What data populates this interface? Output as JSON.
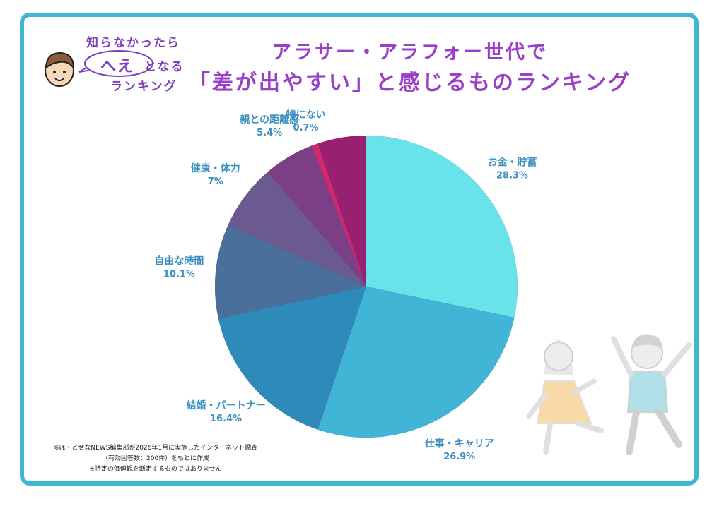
{
  "logo": {
    "line1": "知らなかったら",
    "line2_highlight": "へえ",
    "line2_rest": "となる",
    "line3": "ランキング"
  },
  "title": {
    "line1": "アラサー・アラフォー世代で",
    "line2": "「差が出やすい」と感じるものランキング"
  },
  "footnote": {
    "line1": "※ほ・とせなNEWS編集部が2026年1月に実施したインターネット調査",
    "line2": "（有効回答数：200件）をもとに作成",
    "line3": "※特定の価値観を断定するものではありません"
  },
  "chart_data": {
    "type": "pie",
    "title": "「差が出やすい」と感じるものランキング",
    "start_angle_deg": 0,
    "direction": "clockwise",
    "slices": [
      {
        "label": "お金・貯蓄",
        "value": 28.3,
        "value_label": "28.3%",
        "color": "#68e3e9"
      },
      {
        "label": "仕事・キャリア",
        "value": 26.9,
        "value_label": "26.9%",
        "color": "#40b5d6"
      },
      {
        "label": "結婚・パートナー",
        "value": 16.4,
        "value_label": "16.4%",
        "color": "#2e8ab8"
      },
      {
        "label": "自由な時間",
        "value": 10.1,
        "value_label": "10.1%",
        "color": "#4a6f9b"
      },
      {
        "label": "健康・体力",
        "value": 7,
        "value_label": "7%",
        "color": "#6a5a90"
      },
      {
        "label": "親との距離感",
        "value": 5.4,
        "value_label": "5.4%",
        "color": "#7b3f85"
      },
      {
        "label": "特にない",
        "value": 0.7,
        "value_label": "0.7%",
        "color": "#d0286e"
      }
    ],
    "label_color": "#3a8fbf",
    "remainder_color": "#972071"
  }
}
